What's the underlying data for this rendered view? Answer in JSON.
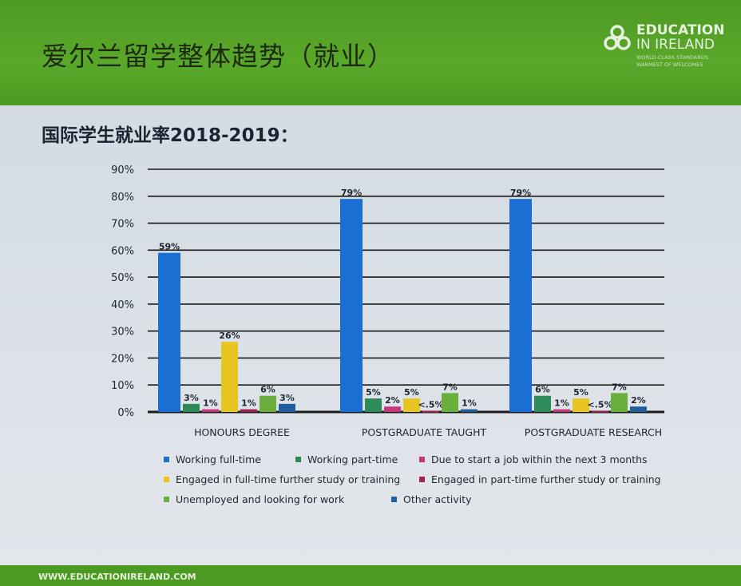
{
  "header": {
    "title": "爱尔兰留学整体趋势（就业）"
  },
  "logo": {
    "line1": "EDUCATION",
    "line2": "IN IRELAND",
    "line3": "WORLD-CLASS STANDARDS",
    "line4": "WARMEST OF WELCOMES"
  },
  "subtitle": "国际学生就业率2018-2019：",
  "footer": {
    "url": "WWW.EDUCATIONIRELAND.COM"
  },
  "chart_data": {
    "type": "bar",
    "title": "国际学生就业率2018-2019：",
    "categories": [
      "HONOURS DEGREE",
      "POSTGRADUATE TAUGHT",
      "POSTGRADUATE RESEARCH"
    ],
    "ylim": [
      0,
      90
    ],
    "yticks": [
      "0%",
      "10%",
      "20%",
      "30%",
      "40%",
      "50%",
      "60%",
      "70%",
      "80%",
      "90%"
    ],
    "grid": true,
    "legend_position": "bottom",
    "series": [
      {
        "name": "Working full-time",
        "color": "#1b6fd2",
        "values": [
          59,
          79,
          79
        ],
        "labels": [
          "59%",
          "79%",
          "79%"
        ]
      },
      {
        "name": "Working part-time",
        "color": "#2f8a5a",
        "values": [
          3,
          5,
          6
        ],
        "labels": [
          "3%",
          "5%",
          "6%"
        ]
      },
      {
        "name": "Due to start a job within the next 3 months",
        "color": "#c8367a",
        "values": [
          1,
          2,
          1
        ],
        "labels": [
          "1%",
          "2%",
          "1%"
        ]
      },
      {
        "name": "Engaged in full-time further study or training",
        "color": "#e8c420",
        "values": [
          26,
          5,
          5
        ],
        "labels": [
          "26%",
          "5%",
          "5%"
        ]
      },
      {
        "name": "Engaged in part-time further study or training",
        "color": "#a3234f",
        "values": [
          1,
          0.4,
          0.4
        ],
        "labels": [
          "1%",
          "<.5%",
          "<.5%"
        ]
      },
      {
        "name": "Unemployed and looking for work",
        "color": "#6aae3e",
        "values": [
          6,
          7,
          7
        ],
        "labels": [
          "6%",
          "7%",
          "7%"
        ]
      },
      {
        "name": "Other activity",
        "color": "#1f5f9e",
        "values": [
          3,
          1,
          2
        ],
        "labels": [
          "3%",
          "1%",
          "2%"
        ]
      }
    ]
  }
}
